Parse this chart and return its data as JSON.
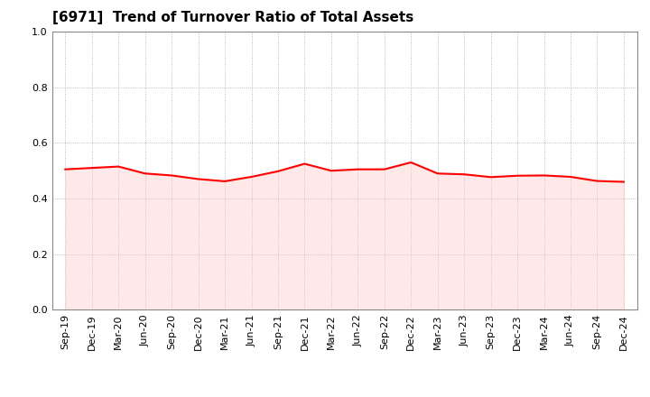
{
  "title": "[6971]  Trend of Turnover Ratio of Total Assets",
  "x_labels": [
    "Sep-19",
    "Dec-19",
    "Mar-20",
    "Jun-20",
    "Sep-20",
    "Dec-20",
    "Mar-21",
    "Jun-21",
    "Sep-21",
    "Dec-21",
    "Mar-22",
    "Jun-22",
    "Sep-22",
    "Dec-22",
    "Mar-23",
    "Jun-23",
    "Sep-23",
    "Dec-23",
    "Mar-24",
    "Jun-24",
    "Sep-24",
    "Dec-24"
  ],
  "values": [
    0.505,
    0.51,
    0.515,
    0.49,
    0.483,
    0.47,
    0.462,
    0.478,
    0.498,
    0.525,
    0.5,
    0.505,
    0.505,
    0.53,
    0.49,
    0.487,
    0.477,
    0.482,
    0.483,
    0.478,
    0.463,
    0.46
  ],
  "line_color": "#ff0000",
  "line_width": 1.5,
  "fill_color": "#ffcccc",
  "fill_alpha": 0.45,
  "ylim": [
    0.0,
    1.0
  ],
  "yticks": [
    0.0,
    0.2,
    0.4,
    0.6,
    0.8,
    1.0
  ],
  "background_color": "#ffffff",
  "grid_color": "#aaaaaa",
  "title_fontsize": 11,
  "tick_fontsize": 8
}
